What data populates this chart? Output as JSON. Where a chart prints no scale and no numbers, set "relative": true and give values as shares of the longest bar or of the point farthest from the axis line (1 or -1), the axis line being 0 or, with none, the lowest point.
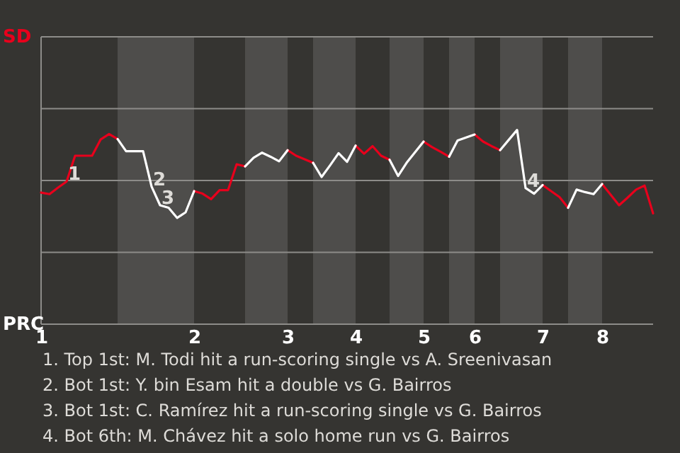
{
  "chart_data": {
    "type": "line",
    "relative": true,
    "categories": [
      "1",
      null,
      null,
      null,
      null,
      null,
      null,
      null,
      null,
      null,
      null,
      null,
      null,
      null,
      null,
      null,
      null,
      null,
      "2",
      null,
      null,
      null,
      null,
      null,
      null,
      null,
      null,
      null,
      null,
      "3",
      null,
      null,
      null,
      null,
      null,
      null,
      null,
      "4",
      null,
      null,
      null,
      null,
      null,
      null,
      null,
      "5",
      null,
      null,
      null,
      null,
      null,
      "6",
      null,
      null,
      null,
      null,
      null,
      null,
      null,
      "7",
      null,
      null,
      null,
      null,
      null,
      null,
      "8",
      null,
      null,
      null,
      null,
      null,
      null
    ],
    "series": [
      {
        "name": "SD",
        "color": "#e8001c",
        "values": [
          -0.24,
          -0.27,
          -0.14,
          -0.02,
          0.49,
          0.49,
          0.49,
          0.81,
          0.92,
          0.82,
          null,
          null,
          null,
          null,
          null,
          null,
          null,
          null,
          -0.21,
          -0.26,
          -0.37,
          -0.19,
          -0.19,
          0.32,
          0.28,
          null,
          null,
          null,
          null,
          0.6,
          0.49,
          0.42,
          0.35,
          null,
          null,
          null,
          null,
          0.69,
          0.53,
          0.68,
          0.49,
          0.41,
          null,
          null,
          null,
          0.77,
          0.66,
          0.57,
          0.47,
          null,
          null,
          0.91,
          0.77,
          0.68,
          0.6,
          null,
          null,
          null,
          null,
          -0.09,
          -0.21,
          -0.33,
          -0.54,
          null,
          null,
          null,
          -0.07,
          -0.28,
          -0.49,
          -0.34,
          -0.18,
          -0.1,
          -0.65
        ]
      },
      {
        "name": "PRC",
        "color": "#ffffff",
        "values": [
          null,
          null,
          null,
          null,
          null,
          null,
          null,
          null,
          null,
          0.82,
          0.58,
          0.58,
          0.58,
          -0.12,
          -0.49,
          -0.54,
          -0.74,
          -0.63,
          -0.21,
          null,
          null,
          null,
          null,
          null,
          0.28,
          0.45,
          0.55,
          0.47,
          0.38,
          0.6,
          null,
          null,
          0.35,
          0.07,
          0.3,
          0.54,
          0.37,
          0.69,
          null,
          null,
          null,
          0.41,
          0.09,
          0.35,
          0.56,
          0.77,
          null,
          null,
          0.47,
          0.79,
          0.85,
          0.91,
          null,
          null,
          0.6,
          0.8,
          1,
          -0.15,
          -0.26,
          -0.09,
          null,
          null,
          -0.54,
          -0.18,
          -0.23,
          -0.27,
          -0.07,
          null,
          null,
          null,
          null,
          null,
          null
        ]
      }
    ],
    "annotations": [
      {
        "text": "1",
        "y": -0.02
      },
      {
        "text": "2",
        "y": -0.12
      },
      {
        "text": "3",
        "y": -0.49
      },
      {
        "text": "4",
        "y": -0.15
      },
      "1. Top 1st: M. Todi hit a run-scoring single vs A. Sreenivasan",
      "2. Bot 1st: Y. bin Esam hit a double vs G. Bairros",
      "3. Bot 1st: C. Ramírez hit a run-scoring single vs G. Bairros",
      "4. Bot 6th: M. Chávez hit a solo home run vs G. Bairros"
    ]
  }
}
